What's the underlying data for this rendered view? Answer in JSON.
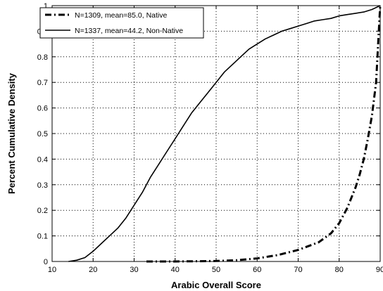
{
  "chart_data": {
    "type": "line",
    "xlabel": "Arabic Overall Score",
    "ylabel": "Percent Cumulative Density",
    "xlim": [
      10,
      90
    ],
    "ylim": [
      0,
      1
    ],
    "xticks": [
      10,
      20,
      30,
      40,
      50,
      60,
      70,
      80,
      90
    ],
    "yticks": [
      0,
      0.1,
      0.2,
      0.3,
      0.4,
      0.5,
      0.6,
      0.7,
      0.8,
      0.9,
      1
    ],
    "xtick_labels": [
      "10",
      "20",
      "30",
      "40",
      "50",
      "60",
      "70",
      "80",
      "90"
    ],
    "ytick_labels": [
      "0",
      "0.1",
      "0.2",
      "0.3",
      "0.4",
      "0.5",
      "0.6",
      "0.7",
      "0.8",
      "0.9",
      "1"
    ],
    "grid": true,
    "legend_position": "top-left",
    "series": [
      {
        "name": "N=1309, mean=85.0, Native",
        "line_style": "dash-dot",
        "color": "#000000",
        "x": [
          33,
          40,
          50,
          55,
          60,
          65,
          70,
          75,
          78,
          80,
          82,
          84,
          85,
          86,
          87,
          88,
          89,
          90
        ],
        "y": [
          0,
          0,
          0.002,
          0.005,
          0.012,
          0.025,
          0.045,
          0.075,
          0.11,
          0.15,
          0.21,
          0.29,
          0.34,
          0.4,
          0.48,
          0.57,
          0.7,
          1.0
        ]
      },
      {
        "name": "N=1337, mean=44.2, Non-Native",
        "line_style": "solid",
        "color": "#000000",
        "x": [
          14,
          16,
          18,
          20,
          22,
          24,
          26,
          28,
          30,
          32,
          34,
          36,
          38,
          40,
          42,
          44,
          46,
          48,
          50,
          52,
          54,
          56,
          58,
          60,
          62,
          64,
          66,
          68,
          70,
          72,
          74,
          76,
          78,
          80,
          82,
          84,
          86,
          88,
          90
        ],
        "y": [
          0,
          0.005,
          0.015,
          0.04,
          0.07,
          0.1,
          0.13,
          0.17,
          0.22,
          0.27,
          0.33,
          0.38,
          0.43,
          0.48,
          0.53,
          0.58,
          0.62,
          0.66,
          0.7,
          0.74,
          0.77,
          0.8,
          0.83,
          0.85,
          0.87,
          0.885,
          0.9,
          0.91,
          0.92,
          0.93,
          0.94,
          0.945,
          0.95,
          0.96,
          0.965,
          0.97,
          0.975,
          0.985,
          1.0
        ]
      }
    ]
  }
}
